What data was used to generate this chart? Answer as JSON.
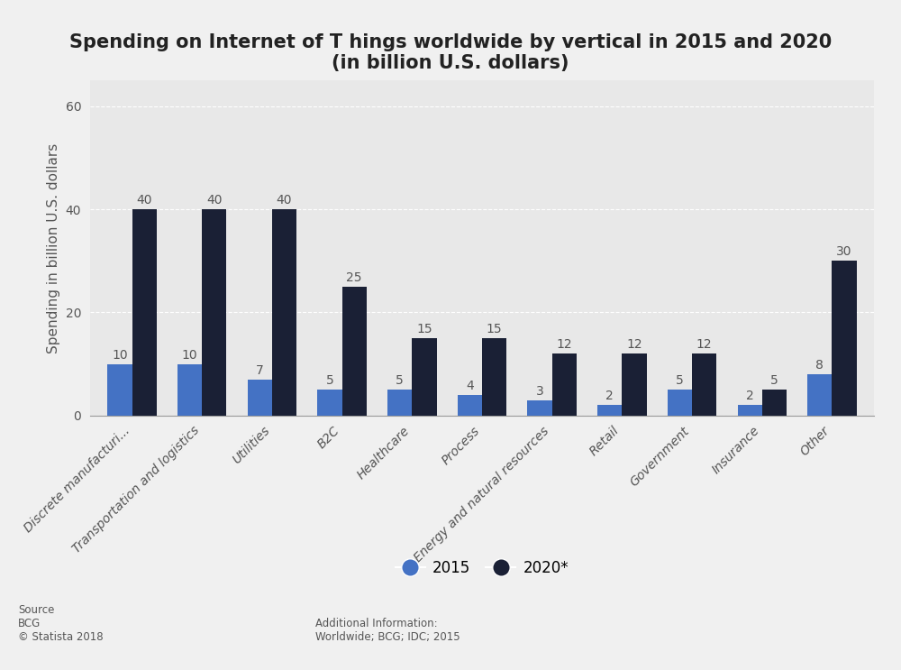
{
  "title": "Spending on Internet of T hings worldwide by vertical in 2015 and 2020\n(in billion U.S. dollars)",
  "ylabel": "Spending in billion U.S. dollars",
  "categories": [
    "Discrete manufacturi...",
    "Transportation and logistics",
    "Utilities",
    "B2C",
    "Healthcare",
    "Process",
    "Energy and natural resources",
    "Retail",
    "Government",
    "Insurance",
    "Other"
  ],
  "values_2015": [
    10,
    10,
    7,
    5,
    5,
    4,
    3,
    2,
    5,
    2,
    8
  ],
  "values_2020": [
    40,
    40,
    40,
    25,
    15,
    15,
    12,
    12,
    12,
    5,
    30
  ],
  "color_2015": "#4472c4",
  "color_2020": "#1a2035",
  "ylim": [
    0,
    65
  ],
  "yticks": [
    0,
    20,
    40,
    60
  ],
  "background_color": "#f0f0f0",
  "plot_background": "#e8e8e8",
  "legend_2015": "2015",
  "legend_2020": "2020*",
  "source_text": "Source\nBCG\n© Statista 2018",
  "additional_text": "Additional Information:\nWorldwide; BCG; IDC; 2015",
  "bar_width": 0.35,
  "label_fontsize": 10,
  "title_fontsize": 15,
  "ylabel_fontsize": 11,
  "tick_fontsize": 10
}
